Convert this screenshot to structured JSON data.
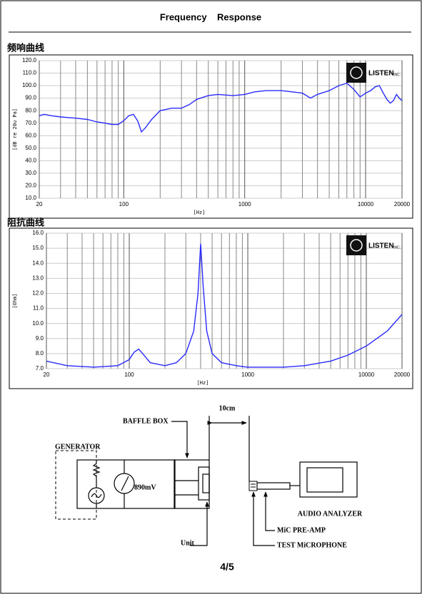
{
  "header": {
    "title": "Frequency    Response"
  },
  "chart_data": [
    {
      "type": "line",
      "title": "频响曲线",
      "xlabel": "[Hz]",
      "ylabel": "[dB re 20u Pa]",
      "logo": "LISTEN",
      "logo_suffix": "INC.",
      "xscale": "log",
      "xlim": [
        20,
        20000
      ],
      "xticks": [
        20,
        100,
        1000,
        10000,
        20000
      ],
      "x_minor_ticks": [
        30,
        40,
        50,
        60,
        70,
        80,
        90,
        200,
        300,
        400,
        500,
        600,
        700,
        800,
        900,
        2000,
        3000,
        4000,
        5000,
        6000,
        7000,
        8000,
        9000
      ],
      "ylim": [
        10,
        120
      ],
      "yticks": [
        {
          "value": 10,
          "label": "10.0"
        },
        {
          "value": 20,
          "label": "20.0"
        },
        {
          "value": 30,
          "label": "30.0"
        },
        {
          "value": 40,
          "label": "40.0"
        },
        {
          "value": 50,
          "label": "50.0"
        },
        {
          "value": 60,
          "label": "60.0"
        },
        {
          "value": 70,
          "label": "70.0"
        },
        {
          "value": 80,
          "label": "80.0"
        },
        {
          "value": 90,
          "label": "90.0"
        },
        {
          "value": 100,
          "label": "100.0"
        },
        {
          "value": 110,
          "label": "110.0"
        },
        {
          "value": 120,
          "label": "120.0"
        }
      ],
      "color": "#2a2aff",
      "grid": true,
      "x": [
        20,
        22,
        25,
        30,
        40,
        50,
        60,
        70,
        80,
        90,
        100,
        110,
        120,
        130,
        140,
        150,
        170,
        200,
        250,
        300,
        350,
        400,
        500,
        600,
        800,
        1000,
        1200,
        1500,
        2000,
        2500,
        3000,
        3500,
        4000,
        5000,
        6000,
        7000,
        8000,
        9000,
        10000,
        11000,
        12000,
        13000,
        14000,
        15000,
        16000,
        17000,
        18000,
        19000,
        20000
      ],
      "values": [
        76,
        77,
        76,
        75,
        74,
        73,
        71,
        70,
        69,
        69,
        72,
        76,
        77,
        72,
        63,
        66,
        73,
        80,
        82,
        82,
        85,
        89,
        92,
        93,
        92,
        93,
        95,
        96,
        96,
        95,
        94,
        90,
        93,
        96,
        100,
        102,
        97,
        91,
        94,
        96,
        99,
        100,
        94,
        89,
        86,
        88,
        93,
        90,
        88
      ]
    },
    {
      "type": "line",
      "title": "阻抗曲线",
      "xlabel": "[Hz]",
      "ylabel": "[Ohm]",
      "logo": "LISTEN",
      "logo_suffix": "INC.",
      "xscale": "log",
      "xlim": [
        20,
        20000
      ],
      "xticks": [
        20,
        100,
        1000,
        10000,
        20000
      ],
      "x_minor_ticks": [
        30,
        40,
        50,
        60,
        70,
        80,
        90,
        200,
        300,
        400,
        500,
        600,
        700,
        800,
        900,
        2000,
        3000,
        4000,
        5000,
        6000,
        7000,
        8000,
        9000
      ],
      "ylim": [
        7,
        16
      ],
      "yticks": [
        {
          "value": 7,
          "label": "7.0"
        },
        {
          "value": 8,
          "label": "8.0"
        },
        {
          "value": 9,
          "label": "9.0"
        },
        {
          "value": 10,
          "label": "10.0"
        },
        {
          "value": 11,
          "label": "11.0"
        },
        {
          "value": 12,
          "label": "12.0"
        },
        {
          "value": 13,
          "label": "13.0"
        },
        {
          "value": 14,
          "label": "14.0"
        },
        {
          "value": 15,
          "label": "15.0"
        },
        {
          "value": 16,
          "label": "16.0"
        }
      ],
      "color": "#2a2aff",
      "grid": true,
      "x": [
        20,
        30,
        50,
        80,
        100,
        110,
        120,
        130,
        150,
        200,
        250,
        300,
        350,
        380,
        400,
        420,
        450,
        500,
        600,
        800,
        1000,
        2000,
        3000,
        5000,
        7000,
        10000,
        15000,
        20000
      ],
      "values": [
        7.5,
        7.2,
        7.1,
        7.2,
        7.6,
        8.1,
        8.3,
        8.0,
        7.4,
        7.2,
        7.4,
        8.0,
        9.5,
        12,
        15.3,
        12.5,
        9.5,
        8.0,
        7.4,
        7.2,
        7.1,
        7.1,
        7.2,
        7.5,
        7.9,
        8.5,
        9.5,
        10.6
      ]
    }
  ],
  "diagram": {
    "distance": "10cm",
    "baffle_box": "BAFFLE BOX",
    "generator": "GENERATOR",
    "voltage": "890mV",
    "unit": "Unit",
    "audio_analyzer": "AUDIO ANALYZER",
    "pre_amp": "MiC PRE-AMP",
    "test_mic": "TEST MiCROPHONE"
  },
  "footer": {
    "page": "4/5"
  }
}
